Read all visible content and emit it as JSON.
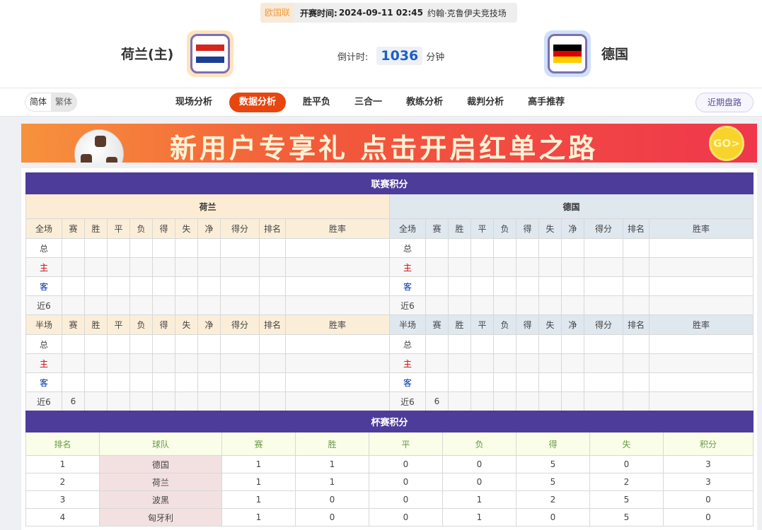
{
  "match": {
    "league": "欧国联",
    "kickoff_label": "开赛时间:",
    "kickoff": "2024-09-11 02:45",
    "venue": "约翰·克鲁伊夫竞技场",
    "home": "荷兰(主)",
    "away": "德国",
    "countdown_label": "倒计时:",
    "countdown": "1036",
    "countdown_unit": "分钟",
    "home_flag": [
      "#d5251e",
      "#ffffff",
      "#1c3f94"
    ],
    "away_flag": [
      "#000000",
      "#dd0000",
      "#ffce00"
    ]
  },
  "nav": {
    "lang": [
      "简体",
      "繁体"
    ],
    "tabs": [
      "现场分析",
      "数据分析",
      "胜平负",
      "三合一",
      "教练分析",
      "裁判分析",
      "高手推荐"
    ],
    "active": "数据分析",
    "recent": "近期盘路"
  },
  "banner": {
    "text": "新用户专享礼 点击开启红单之路",
    "go": "GO>"
  },
  "league": {
    "title": "联赛积分",
    "home_team": "荷兰",
    "away_team": "德国",
    "full_headers": [
      "全场",
      "赛",
      "胜",
      "平",
      "负",
      "得",
      "失",
      "净",
      "得分",
      "排名",
      "胜率"
    ],
    "half_headers": [
      "半场",
      "赛",
      "胜",
      "平",
      "负",
      "得",
      "失",
      "净",
      "得分",
      "排名",
      "胜率"
    ],
    "full_rows": [
      {
        "label": "总",
        "home": [
          "",
          "",
          "",
          "",
          "",
          "",
          "",
          "",
          "",
          ""
        ],
        "away": [
          "",
          "",
          "",
          "",
          "",
          "",
          "",
          "",
          "",
          ""
        ]
      },
      {
        "label": "主",
        "home": [
          "",
          "",
          "",
          "",
          "",
          "",
          "",
          "",
          "",
          ""
        ],
        "away": [
          "",
          "",
          "",
          "",
          "",
          "",
          "",
          "",
          "",
          ""
        ]
      },
      {
        "label": "客",
        "home": [
          "",
          "",
          "",
          "",
          "",
          "",
          "",
          "",
          "",
          ""
        ],
        "away": [
          "",
          "",
          "",
          "",
          "",
          "",
          "",
          "",
          "",
          ""
        ]
      },
      {
        "label": "近6",
        "home": [
          "",
          "",
          "",
          "",
          "",
          "",
          "",
          "",
          "",
          ""
        ],
        "away": [
          "",
          "",
          "",
          "",
          "",
          "",
          "",
          "",
          "",
          ""
        ]
      }
    ],
    "half_rows": [
      {
        "label": "总",
        "home": [
          "",
          "",
          "",
          "",
          "",
          "",
          "",
          "",
          "",
          ""
        ],
        "away": [
          "",
          "",
          "",
          "",
          "",
          "",
          "",
          "",
          "",
          ""
        ]
      },
      {
        "label": "主",
        "home": [
          "",
          "",
          "",
          "",
          "",
          "",
          "",
          "",
          "",
          ""
        ],
        "away": [
          "",
          "",
          "",
          "",
          "",
          "",
          "",
          "",
          "",
          ""
        ]
      },
      {
        "label": "客",
        "home": [
          "",
          "",
          "",
          "",
          "",
          "",
          "",
          "",
          "",
          ""
        ],
        "away": [
          "",
          "",
          "",
          "",
          "",
          "",
          "",
          "",
          "",
          ""
        ]
      },
      {
        "label": "近6",
        "home": [
          "6",
          "",
          "",
          "",
          "",
          "",
          "",
          "",
          "",
          ""
        ],
        "away": [
          "6",
          "",
          "",
          "",
          "",
          "",
          "",
          "",
          "",
          ""
        ]
      }
    ]
  },
  "cup": {
    "title": "杯赛积分",
    "headers": [
      "排名",
      "球队",
      "赛",
      "胜",
      "平",
      "负",
      "得",
      "失",
      "积分"
    ],
    "rows": [
      [
        "1",
        "德国",
        "1",
        "1",
        "0",
        "0",
        "5",
        "0",
        "3"
      ],
      [
        "2",
        "荷兰",
        "1",
        "1",
        "0",
        "0",
        "5",
        "2",
        "3"
      ],
      [
        "3",
        "波黑",
        "1",
        "0",
        "0",
        "1",
        "2",
        "5",
        "0"
      ],
      [
        "4",
        "匈牙利",
        "1",
        "0",
        "0",
        "1",
        "0",
        "5",
        "0"
      ]
    ]
  }
}
